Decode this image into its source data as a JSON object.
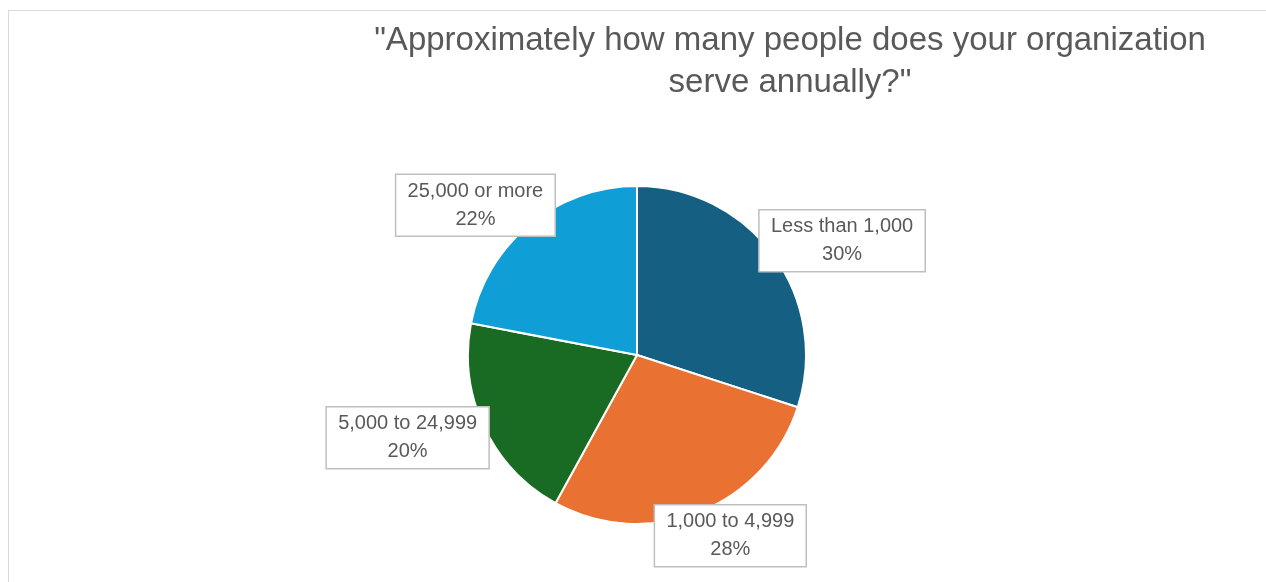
{
  "chart_data": {
    "type": "pie",
    "title": "\"Approximately how many people does your organization serve annually?\"",
    "categories": [
      "Less than 1,000",
      "1,000 to 4,999",
      "5,000 to 24,999",
      "25,000 or more"
    ],
    "values": [
      30,
      28,
      20,
      22
    ],
    "value_labels": [
      "30%",
      "28%",
      "20%",
      "22%"
    ],
    "colors": [
      "#156082",
      "#e97132",
      "#196b24",
      "#0f9ed5"
    ],
    "legend": false
  }
}
